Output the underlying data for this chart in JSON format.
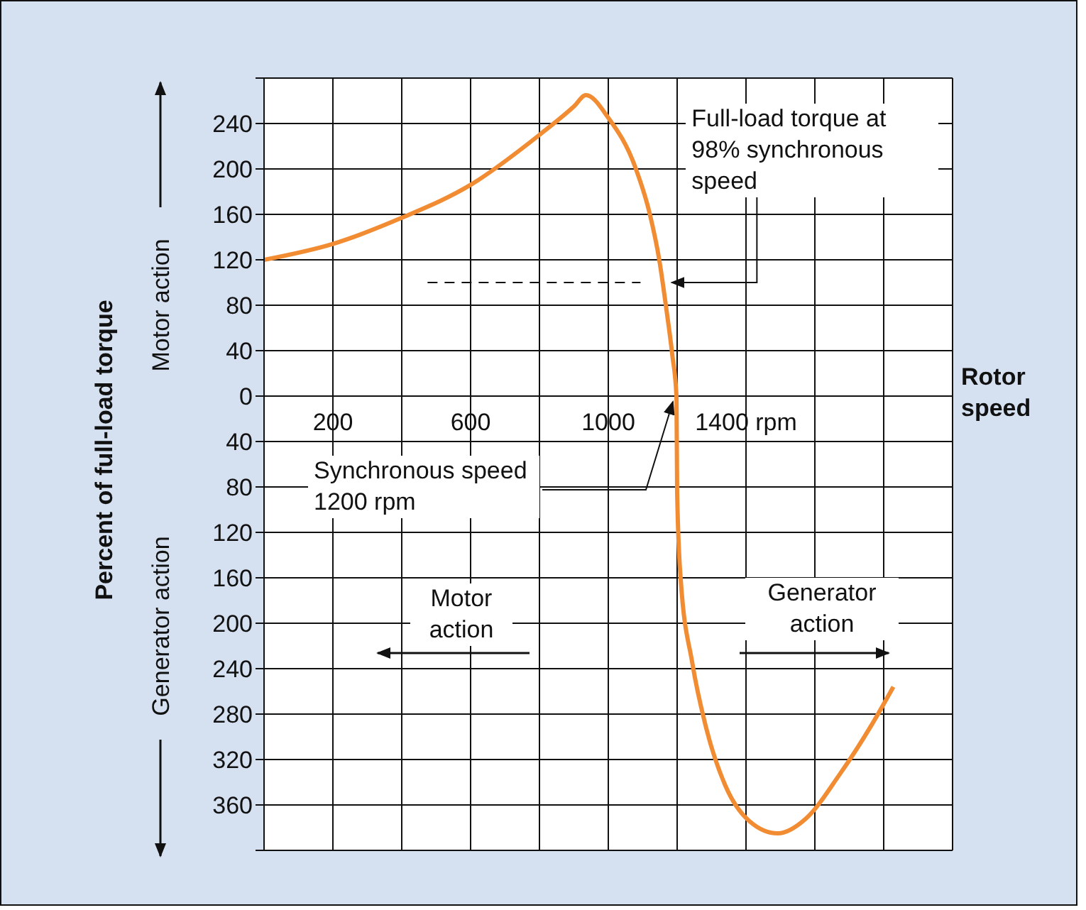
{
  "chart_data": {
    "type": "line",
    "xlabel": "Rotor speed",
    "ylabel": "Percent of full-load torque",
    "x": [
      0,
      200,
      400,
      600,
      800,
      900,
      935,
      1000,
      1079,
      1120,
      1148,
      1168,
      1186,
      1198,
      1200,
      1210,
      1244,
      1285,
      1340,
      1409,
      1492,
      1574,
      1670,
      1766,
      1828
    ],
    "series": [
      {
        "color": "#f28c33",
        "values": [
          120,
          134,
          157,
          186,
          230,
          255,
          265,
          245,
          201,
          161,
          120,
          78,
          36,
          0,
          -85,
          -160,
          -235,
          -293,
          -343,
          -374,
          -385,
          -372,
          -334,
          -289,
          -256
        ]
      }
    ],
    "xlim": [
      0,
      2000
    ],
    "xticks": [
      {
        "value": 0,
        "label": null
      },
      200,
      {
        "value": 400,
        "label": null
      },
      600,
      {
        "value": 800,
        "label": null
      },
      1000,
      {
        "value": 1200,
        "label": null
      },
      {
        "value": 1400,
        "label": "1400 rpm"
      },
      {
        "value": 1600,
        "label": null
      },
      {
        "value": 1800,
        "label": null
      },
      {
        "value": 2000,
        "label": null
      }
    ],
    "ylim": [
      -400,
      280
    ],
    "yticks": [
      {
        "value": -400,
        "label": null
      },
      {
        "value": -360,
        "label": "360"
      },
      {
        "value": -320,
        "label": "320"
      },
      {
        "value": -280,
        "label": "280"
      },
      {
        "value": -240,
        "label": "240"
      },
      {
        "value": -200,
        "label": "200"
      },
      {
        "value": -160,
        "label": "160"
      },
      {
        "value": -120,
        "label": "120"
      },
      {
        "value": -80,
        "label": "80"
      },
      {
        "value": -40,
        "label": "40"
      },
      0,
      40,
      80,
      120,
      160,
      200,
      240,
      {
        "value": 280,
        "label": null
      }
    ],
    "grid": true,
    "marker": "none",
    "annotations": [
      {
        "text": "Full-load torque at 98% synchronous speed",
        "x": 1176,
        "y": 100
      },
      {
        "text": "Synchronous speed 1200 rpm",
        "x": 1200,
        "y": 0
      },
      "Motor action",
      "Generator action",
      "Motor action",
      "Generator action"
    ]
  }
}
